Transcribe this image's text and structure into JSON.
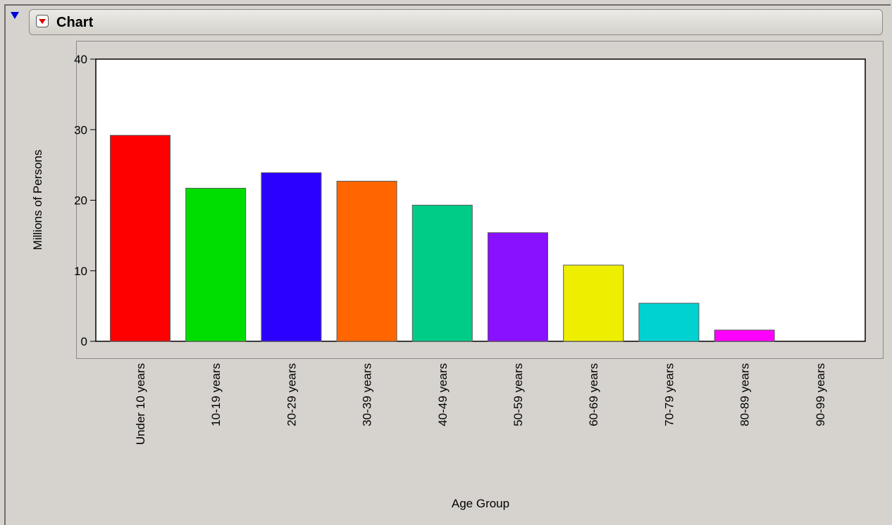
{
  "header": {
    "title": "Chart"
  },
  "icons": {
    "disclosure": "disclosure-triangle-icon",
    "menu": "red-triangle-menu-icon"
  },
  "chart_data": {
    "type": "bar",
    "xlabel": "Age Group",
    "ylabel": "Millions of Persons",
    "ylim": [
      0,
      40
    ],
    "yticks": [
      0,
      10,
      20,
      30,
      40
    ],
    "grid": false,
    "categories": [
      "Under 10 years",
      "10-19 years",
      "20-29 years",
      "30-39 years",
      "40-49 years",
      "50-59 years",
      "60-69 years",
      "70-79 years",
      "80-89 years",
      "90-99 years"
    ],
    "values": [
      29.2,
      21.7,
      23.9,
      22.7,
      19.3,
      15.4,
      10.8,
      5.4,
      1.6,
      0.0
    ],
    "colors": [
      "#ff0000",
      "#00dd00",
      "#2b00ff",
      "#ff6600",
      "#00cc88",
      "#8811ff",
      "#eeee00",
      "#00d2d2",
      "#ff00ff",
      "#dddddd"
    ]
  }
}
